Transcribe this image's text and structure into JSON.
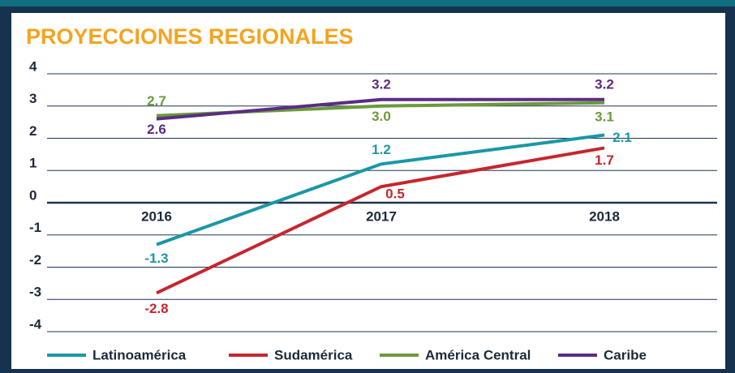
{
  "chart_data": {
    "type": "line",
    "title": "PROYECCIONES REGIONALES",
    "categories": [
      "2016",
      "2017",
      "2018"
    ],
    "series": [
      {
        "name": "Latinoamérica",
        "color": "#1b97a6",
        "values": [
          -1.3,
          1.2,
          2.1
        ],
        "value_labels": [
          "-1.3",
          "1.2",
          "2.1"
        ]
      },
      {
        "name": "Sudamérica",
        "color": "#c6262e",
        "values": [
          -2.8,
          0.5,
          1.7
        ],
        "value_labels": [
          "-2.8",
          "0.5",
          "1.7"
        ]
      },
      {
        "name": "América Central",
        "color": "#6b9a3b",
        "values": [
          2.7,
          3.0,
          3.1
        ],
        "value_labels": [
          "2.7",
          "3.0",
          "3.1"
        ]
      },
      {
        "name": "Caribe",
        "color": "#5a2d82",
        "values": [
          2.6,
          3.2,
          3.2
        ],
        "value_labels": [
          "2.6",
          "3.2",
          "3.2"
        ]
      }
    ],
    "ylim": [
      -4,
      4
    ],
    "yticks": [
      -4,
      -3,
      -2,
      -1,
      0,
      1,
      2,
      3,
      4
    ],
    "grid": true,
    "legend": "bottom"
  }
}
